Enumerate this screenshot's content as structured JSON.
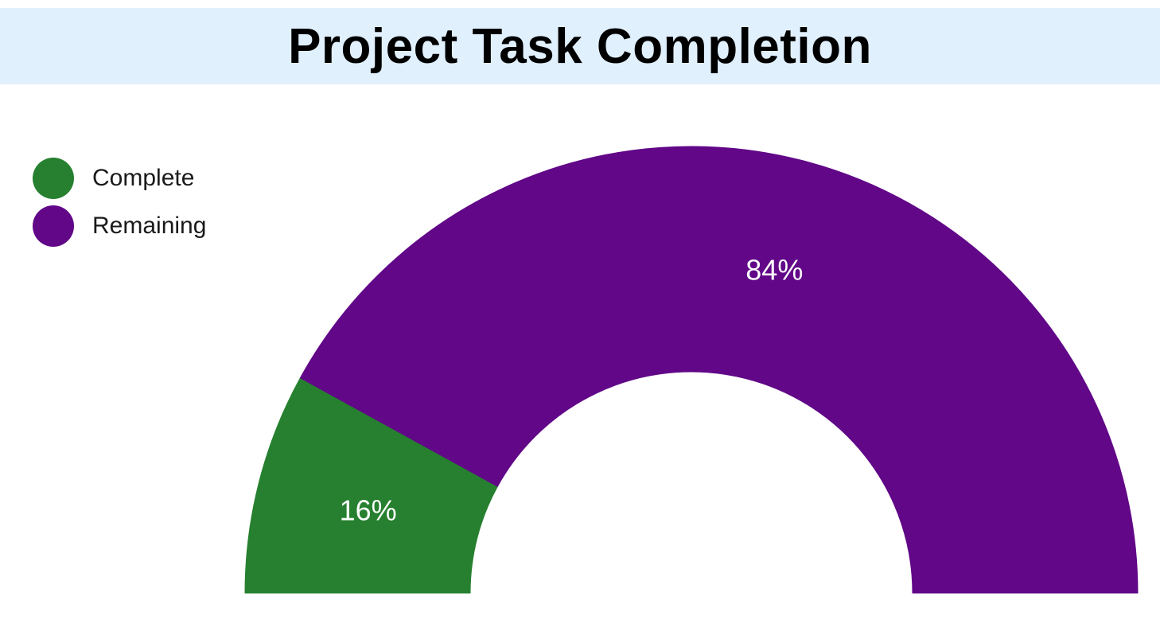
{
  "title": "Project Task Completion",
  "colors": {
    "title_background": "#e1f0fd",
    "complete": "#26802f",
    "remaining": "#610788"
  },
  "legend": [
    {
      "label": "Complete",
      "color": "#26802f"
    },
    {
      "label": "Remaining",
      "color": "#610788"
    }
  ],
  "chart_data": {
    "type": "pie",
    "subtype": "half-donut",
    "title": "Project Task Completion",
    "categories": [
      "Complete",
      "Remaining"
    ],
    "values": [
      16,
      84
    ],
    "labels": [
      "16%",
      "84%"
    ],
    "colors": [
      "#26802f",
      "#610788"
    ],
    "legend_position": "top-left"
  }
}
